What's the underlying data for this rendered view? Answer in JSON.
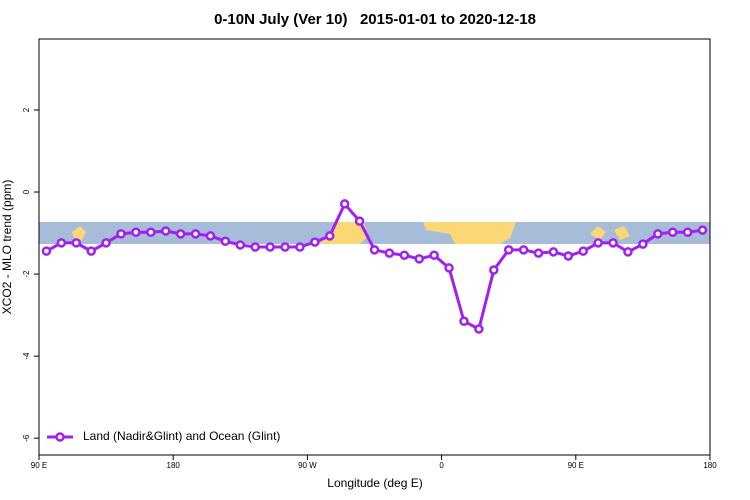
{
  "chart_data": {
    "type": "line",
    "title": "0-10N July (Ver 10)   2015-01-01 to 2020-12-18",
    "x_label": "Longitude (deg E)",
    "y_label": "XCO2 - MLO trend (ppm)",
    "xlim": [
      90,
      540
    ],
    "xticks": [
      {
        "value": 90,
        "label": "90 E"
      },
      180,
      {
        "value": 270,
        "label": "90 W"
      },
      {
        "value": 360,
        "label": "0"
      },
      {
        "value": 450,
        "label": "90 E"
      },
      {
        "value": 540,
        "label": "180"
      }
    ],
    "ylim": [
      -6.41,
      3.73
    ],
    "yticks": [
      -6,
      -4,
      -2,
      0,
      2
    ],
    "legend_position": "bottom-left",
    "series": [
      {
        "name": "Land (Nadir&Glint) and Ocean (Glint)",
        "color": "#a020f0",
        "x": [
          95,
          105,
          115,
          125,
          135,
          145,
          155,
          165,
          175,
          185,
          195,
          205,
          215,
          225,
          235,
          245,
          255,
          265,
          275,
          285,
          295,
          305,
          315,
          325,
          335,
          345,
          355,
          365,
          375,
          385,
          395,
          405,
          415,
          425,
          435,
          445,
          455,
          465,
          475,
          485,
          495,
          505,
          515,
          525,
          535
        ],
        "values": [
          -1.44,
          -1.24,
          -1.24,
          -1.44,
          -1.24,
          -1.02,
          -0.98,
          -0.98,
          -0.95,
          -1.02,
          -1.02,
          -1.07,
          -1.2,
          -1.29,
          -1.34,
          -1.34,
          -1.34,
          -1.34,
          -1.22,
          -1.07,
          -0.29,
          -0.71,
          -1.41,
          -1.49,
          -1.54,
          -1.63,
          -1.54,
          -1.85,
          -3.15,
          -3.34,
          -1.9,
          -1.41,
          -1.41,
          -1.49,
          -1.46,
          -1.56,
          -1.44,
          -1.24,
          -1.24,
          -1.46,
          -1.27,
          -1.02,
          -0.98,
          -0.98,
          -0.93
        ]
      }
    ]
  }
}
